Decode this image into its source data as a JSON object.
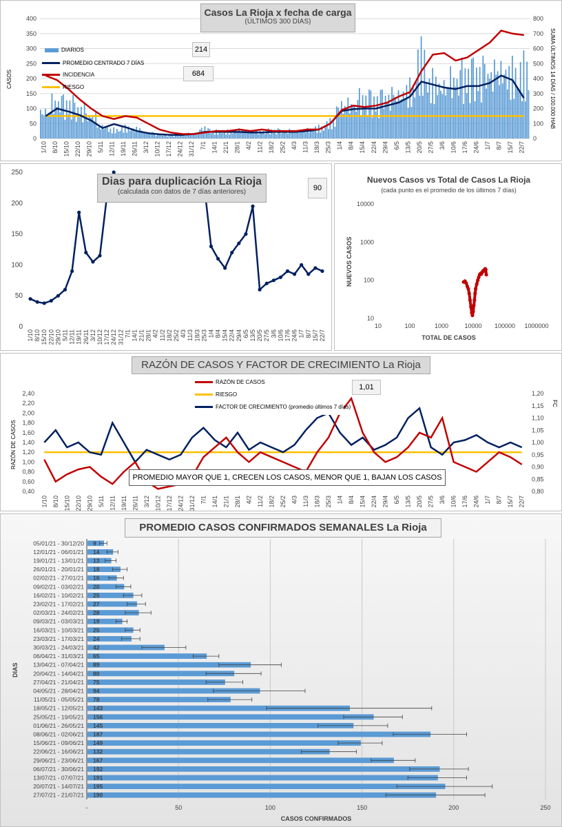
{
  "chart_data": [
    {
      "type": "bar",
      "title": "Casos La Rioja x fecha de carga",
      "subtitle": "(ÚLTIMOS 300 DÍAS)",
      "ylabel": "CASOS",
      "y2label": "SUMA  ÚLTIMOS 14 DÍAS / 100.000 HAB",
      "ylim": [
        0,
        400
      ],
      "y2lim": [
        0,
        800
      ],
      "yticks": [
        "0",
        "50",
        "100",
        "150",
        "200",
        "250",
        "300",
        "350",
        "400"
      ],
      "y2ticks": [
        "0",
        "100",
        "200",
        "300",
        "400",
        "500",
        "600",
        "700",
        "800"
      ],
      "x": [
        "1/10",
        "8/10",
        "15/10",
        "22/10",
        "29/10",
        "5/11",
        "12/11",
        "19/11",
        "26/11",
        "3/12",
        "10/12",
        "17/12",
        "24/12",
        "31/12",
        "7/1",
        "14/1",
        "21/1",
        "28/1",
        "4/2",
        "11/2",
        "18/2",
        "25/2",
        "4/3",
        "11/3",
        "18/3",
        "25/3",
        "1/4",
        "8/4",
        "15/4",
        "22/4",
        "29/4",
        "6/5",
        "13/5",
        "20/5",
        "27/5",
        "3/6",
        "10/6",
        "17/6",
        "24/6",
        "1/7",
        "8/7",
        "15/7",
        "22/7"
      ],
      "annotations": [
        "214",
        "684"
      ],
      "series": [
        {
          "name": "DIARIOS",
          "values": [
            80,
            105,
            95,
            80,
            65,
            35,
            25,
            30,
            28,
            18,
            12,
            10,
            12,
            16,
            30,
            20,
            20,
            25,
            20,
            20,
            22,
            22,
            20,
            25,
            30,
            45,
            95,
            100,
            110,
            105,
            120,
            130,
            140,
            220,
            160,
            155,
            170,
            175,
            180,
            190,
            200,
            185,
            190
          ]
        },
        {
          "name": "PROMEDIO CENTRADO 7 DÍAS",
          "values": [
            75,
            100,
            90,
            78,
            60,
            35,
            48,
            38,
            25,
            18,
            14,
            12,
            12,
            15,
            22,
            22,
            22,
            22,
            20,
            20,
            22,
            22,
            22,
            25,
            30,
            50,
            92,
            98,
            100,
            100,
            110,
            120,
            140,
            190,
            180,
            170,
            165,
            175,
            175,
            185,
            210,
            195,
            135
          ]
        },
        {
          "name": "INCIDENCIA",
          "values": [
            420,
            390,
            330,
            260,
            200,
            150,
            130,
            150,
            140,
            100,
            60,
            40,
            30,
            30,
            40,
            50,
            50,
            60,
            50,
            60,
            50,
            50,
            50,
            60,
            60,
            100,
            190,
            220,
            210,
            220,
            240,
            280,
            310,
            450,
            560,
            570,
            520,
            540,
            590,
            640,
            720,
            700,
            690
          ]
        },
        {
          "name": "RIESGO",
          "values": [
            150,
            150,
            150,
            150,
            150,
            150,
            150,
            150,
            150,
            150,
            150,
            150,
            150,
            150,
            150,
            150,
            150,
            150,
            150,
            150,
            150,
            150,
            150,
            150,
            150,
            150,
            150,
            150,
            150,
            150,
            150,
            150,
            150,
            150,
            150,
            150,
            150,
            150,
            150,
            150,
            150,
            150,
            150
          ]
        }
      ]
    },
    {
      "type": "line",
      "title": "Dias para duplicación La Rioja",
      "subtitle": "(calculada con datos de 7 días anteriores)",
      "annotation": "90",
      "ylim": [
        0,
        250
      ],
      "yticks": [
        "0",
        "50",
        "100",
        "150",
        "200",
        "250"
      ],
      "x": [
        "1/10",
        "8/10",
        "15/10",
        "22/10",
        "29/10",
        "5/11",
        "12/11",
        "19/11",
        "26/11",
        "3/12",
        "10/12",
        "17/12",
        "24/12",
        "31/12",
        "7/1",
        "14/1",
        "21/1",
        "28/1",
        "4/2",
        "11/2",
        "18/2",
        "25/2",
        "4/3",
        "11/3",
        "18/3",
        "25/3",
        "1/4",
        "8/4",
        "15/4",
        "22/4",
        "29/4",
        "6/5",
        "13/5",
        "20/5",
        "27/5",
        "3/6",
        "10/6",
        "17/6",
        "24/6",
        "1/7",
        "8/7",
        "15/7",
        "22/7"
      ],
      "values": [
        45,
        40,
        38,
        42,
        50,
        60,
        90,
        185,
        120,
        105,
        115,
        210,
        250,
        230,
        null,
        null,
        null,
        null,
        null,
        null,
        null,
        null,
        null,
        null,
        null,
        230,
        130,
        110,
        95,
        120,
        135,
        150,
        195,
        60,
        70,
        75,
        80,
        90,
        85,
        100,
        85,
        95,
        90
      ]
    },
    {
      "type": "scatter",
      "title": "Nuevos Casos vs Total de Casos La Rioja",
      "subtitle": "(cada punto es el promedio de los últimos 7 días)",
      "xlabel": "TOTAL DE CASOS",
      "ylabel": "NUEVOS CASOS",
      "xscale": "log",
      "yscale": "log",
      "xlim": [
        10,
        1000000
      ],
      "ylim": [
        10,
        10000
      ],
      "xticks": [
        "10",
        "100",
        "1000",
        "10000",
        "100000",
        "1000000"
      ],
      "yticks": [
        "10",
        "100",
        "1000",
        "10000"
      ],
      "points": [
        [
          5000,
          90
        ],
        [
          5500,
          95
        ],
        [
          6000,
          85
        ],
        [
          6500,
          70
        ],
        [
          7000,
          60
        ],
        [
          7500,
          45
        ],
        [
          8000,
          30
        ],
        [
          8500,
          20
        ],
        [
          9000,
          14
        ],
        [
          9500,
          12
        ],
        [
          10000,
          15
        ],
        [
          10500,
          22
        ],
        [
          11000,
          30
        ],
        [
          11500,
          45
        ],
        [
          12000,
          60
        ],
        [
          13000,
          80
        ],
        [
          14000,
          100
        ],
        [
          15000,
          120
        ],
        [
          16000,
          140
        ],
        [
          17000,
          150
        ],
        [
          18000,
          145
        ],
        [
          19000,
          160
        ],
        [
          20000,
          170
        ],
        [
          21000,
          180
        ],
        [
          22000,
          175
        ],
        [
          23000,
          190
        ],
        [
          24000,
          200
        ],
        [
          25000,
          190
        ],
        [
          26000,
          140
        ]
      ]
    },
    {
      "type": "line",
      "title": "RAZÓN DE CASOS Y FACTOR DE CRECIMIENTO La Rioja",
      "ylabel": "RAZÓN DE CASOS",
      "y2label": "FC",
      "annotation": "1,01",
      "note": "PROMEDIO MAYOR QUE 1, CRECEN LOS CASOS, MENOR QUE 1, BAJAN LOS CASOS",
      "ylim": [
        0.4,
        2.4
      ],
      "y2lim": [
        0.8,
        1.2
      ],
      "yticks": [
        "0,40",
        "0,60",
        "0,80",
        "1,00",
        "1,20",
        "1,40",
        "1,60",
        "1,80",
        "2,00",
        "2,20",
        "2,40"
      ],
      "y2ticks": [
        "0,80",
        "0,85",
        "0,90",
        "0,95",
        "1,00",
        "1,05",
        "1,10",
        "1,15",
        "1,20"
      ],
      "x": [
        "1/10",
        "8/10",
        "15/10",
        "22/10",
        "29/10",
        "5/11",
        "12/11",
        "19/11",
        "26/11",
        "3/12",
        "10/12",
        "17/12",
        "24/12",
        "31/12",
        "7/1",
        "14/1",
        "21/1",
        "28/1",
        "4/2",
        "11/2",
        "18/2",
        "25/2",
        "4/3",
        "11/3",
        "18/3",
        "25/3",
        "1/4",
        "8/4",
        "15/4",
        "22/4",
        "29/4",
        "6/5",
        "13/5",
        "20/5",
        "27/5",
        "3/6",
        "10/6",
        "17/6",
        "24/6",
        "1/7",
        "8/7",
        "15/7",
        "22/7"
      ],
      "series": [
        {
          "name": "RAZÓN DE CASOS",
          "values": [
            1.05,
            0.6,
            0.75,
            0.85,
            0.9,
            0.7,
            0.55,
            0.8,
            1.0,
            0.6,
            0.45,
            0.5,
            0.55,
            0.7,
            1.1,
            1.3,
            1.5,
            1.2,
            1.0,
            1.2,
            1.1,
            1.0,
            0.9,
            0.8,
            1.2,
            1.5,
            2.0,
            2.3,
            1.6,
            1.2,
            1.0,
            1.1,
            1.3,
            1.6,
            1.5,
            1.9,
            1.0,
            0.9,
            0.8,
            1.0,
            1.2,
            1.1,
            0.95
          ]
        },
        {
          "name": "RIESGO",
          "values": [
            1.2,
            1.2,
            1.2,
            1.2,
            1.2,
            1.2,
            1.2,
            1.2,
            1.2,
            1.2,
            1.2,
            1.2,
            1.2,
            1.2,
            1.2,
            1.2,
            1.2,
            1.2,
            1.2,
            1.2,
            1.2,
            1.2,
            1.2,
            1.2,
            1.2,
            1.2,
            1.2,
            1.2,
            1.2,
            1.2,
            1.2,
            1.2,
            1.2,
            1.2,
            1.2,
            1.2,
            1.2,
            1.2,
            1.2,
            1.2,
            1.2,
            1.2,
            1.2
          ]
        },
        {
          "name": "FACTOR DE CRECIMIENTO (promedio últimos 7 días)",
          "values": [
            1.0,
            1.05,
            0.98,
            1.0,
            0.96,
            0.95,
            1.08,
            1.0,
            0.92,
            0.97,
            0.95,
            0.93,
            0.95,
            1.02,
            1.06,
            1.01,
            0.98,
            1.04,
            0.97,
            1.0,
            0.98,
            0.96,
            0.99,
            1.05,
            1.1,
            1.12,
            1.04,
            0.99,
            1.02,
            0.97,
            0.99,
            1.02,
            1.1,
            1.14,
            0.98,
            0.95,
            1.0,
            1.01,
            1.03,
            1.0,
            0.98,
            1.0,
            0.98
          ]
        }
      ]
    },
    {
      "type": "bar",
      "orientation": "horizontal",
      "title": "PROMEDIO CASOS CONFIRMADOS SEMANALES La Rioja",
      "xlabel": "CASOS CONFIRMADOS",
      "ylabel": "DIAS",
      "xlim": [
        0,
        250
      ],
      "xticks": [
        "-",
        "50",
        "100",
        "150",
        "200",
        "250"
      ],
      "categories": [
        "05/01/21 - 30/12/20",
        "12/01/21 - 06/01/21",
        "19/01/21 - 13/01/21",
        "26/01/21 - 20/01/21",
        "02/02/21 - 27/01/21",
        "09/02/21 - 03/02/21",
        "16/02/21 - 10/02/21",
        "23/02/21 - 17/02/21",
        "02/03/21 - 24/02/21",
        "09/03/21 - 03/03/21",
        "16/03/21 - 10/03/21",
        "23/03/21 - 17/03/21",
        "30/03/21 - 24/03/21",
        "06/04/21 - 31/03/21",
        "13/04/21 - 07/04/21",
        "20/04/21 - 14/04/21",
        "27/04/21 - 21/04/21",
        "04/05/21 - 28/04/21",
        "11/05/21 - 05/05/21",
        "18/05/21 - 12/05/21",
        "25/05/21 - 19/05/21",
        "01/06/21 - 26/05/21",
        "08/06/21 - 02/06/21",
        "15/06/21 - 09/06/21",
        "22/06/21 - 16/06/21",
        "29/06/21 - 23/06/21",
        "06/07/21 - 30/06/21",
        "13/07/21 - 07/07/21",
        "20/07/21 - 14/07/21",
        "27/07/21 - 21/07/21"
      ],
      "values": [
        9,
        14,
        13,
        18,
        16,
        20,
        25,
        27,
        28,
        19,
        25,
        24,
        42,
        65,
        89,
        80,
        75,
        94,
        78,
        143,
        156,
        145,
        187,
        149,
        132,
        167,
        192,
        191,
        195,
        190
      ],
      "labels": [
        "9",
        "14",
        "13",
        "18",
        "16",
        "20",
        "25",
        "27",
        "28",
        "19",
        "25",
        "24",
        "42",
        "65",
        "89",
        "80",
        "75",
        "94",
        "78",
        "143",
        "156",
        "145",
        "187",
        "149",
        "132",
        "167",
        "192",
        "191",
        "195",
        "190"
      ],
      "errors": [
        2,
        3,
        3,
        4,
        4,
        4,
        5,
        5,
        7,
        3,
        4,
        5,
        12,
        7,
        17,
        15,
        10,
        25,
        12,
        45,
        16,
        19,
        20,
        12,
        15,
        12,
        16,
        16,
        26,
        27
      ]
    }
  ],
  "legend1": {
    "diarios": "DIARIOS",
    "promedio": "PROMEDIO CENTRADO 7 DÍAS",
    "incidencia": "INCIDENCIA",
    "riesgo": "RIESGO"
  },
  "legend4": {
    "razon": "RAZÓN DE CASOS",
    "riesgo": "RIESGO",
    "fc": "FACTOR DE CRECIMIENTO (promedio últimos 7 días)"
  },
  "colors": {
    "bar_blue": "#5b9bd5",
    "navy": "#002060",
    "red": "#c00000",
    "gold": "#ffc000",
    "grid": "#d9d9d9"
  }
}
